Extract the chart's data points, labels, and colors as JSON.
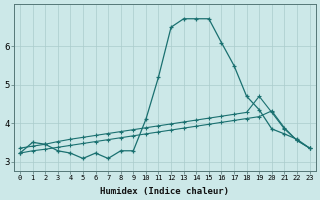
{
  "xlabel": "Humidex (Indice chaleur)",
  "bg_color": "#cce8e8",
  "grid_color": "#aacccc",
  "line_color": "#1a7070",
  "xlim": [
    -0.5,
    23.5
  ],
  "ylim": [
    2.75,
    7.1
  ],
  "yticks": [
    3,
    4,
    5,
    6
  ],
  "xticks": [
    0,
    1,
    2,
    3,
    4,
    5,
    6,
    7,
    8,
    9,
    10,
    11,
    12,
    13,
    14,
    15,
    16,
    17,
    18,
    19,
    20,
    21,
    22,
    23
  ],
  "line1_x": [
    0,
    1,
    2,
    3,
    4,
    5,
    6,
    7,
    8,
    9,
    10,
    11,
    12,
    13,
    14,
    15,
    16,
    17,
    18,
    19,
    20,
    21,
    22,
    23
  ],
  "line1_y": [
    3.22,
    3.5,
    3.45,
    3.28,
    3.22,
    3.08,
    3.22,
    3.08,
    3.28,
    3.28,
    4.1,
    5.2,
    6.5,
    6.72,
    6.72,
    6.72,
    6.1,
    5.5,
    4.7,
    4.35,
    3.85,
    3.72,
    3.58,
    3.35
  ],
  "line2_x": [
    0,
    1,
    2,
    3,
    4,
    5,
    6,
    7,
    8,
    9,
    10,
    11,
    12,
    13,
    14,
    15,
    16,
    17,
    18,
    19,
    20,
    21,
    22,
    23
  ],
  "line2_y": [
    3.35,
    3.4,
    3.45,
    3.52,
    3.58,
    3.63,
    3.68,
    3.73,
    3.78,
    3.83,
    3.88,
    3.93,
    3.98,
    4.03,
    4.08,
    4.13,
    4.18,
    4.23,
    4.28,
    4.7,
    4.28,
    3.85,
    3.55,
    3.35
  ],
  "line3_x": [
    0,
    1,
    2,
    3,
    4,
    5,
    6,
    7,
    8,
    9,
    10,
    11,
    12,
    13,
    14,
    15,
    16,
    17,
    18,
    19,
    20,
    21,
    22,
    23
  ],
  "line3_y": [
    3.22,
    3.28,
    3.32,
    3.37,
    3.42,
    3.47,
    3.52,
    3.57,
    3.62,
    3.67,
    3.72,
    3.77,
    3.82,
    3.87,
    3.92,
    3.97,
    4.02,
    4.07,
    4.12,
    4.17,
    4.32,
    3.88,
    3.55,
    3.35
  ]
}
